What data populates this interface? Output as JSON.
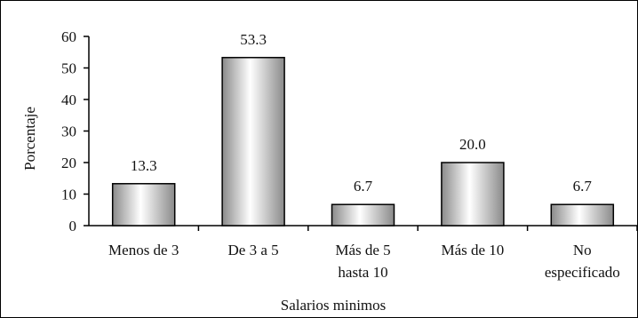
{
  "chart_data": {
    "type": "bar",
    "title": "",
    "xlabel": "Salarios minimos",
    "ylabel": "Porcentaje",
    "categories": [
      [
        "Menos de 3"
      ],
      [
        "De 3 a 5"
      ],
      [
        "Más de 5",
        "hasta 10"
      ],
      [
        "Más de 10"
      ],
      [
        "No",
        "especificado"
      ]
    ],
    "values": [
      13.3,
      53.3,
      6.7,
      20.0,
      6.7
    ],
    "value_labels": [
      "13.3",
      "53.3",
      "6.7",
      "20.0",
      "6.7"
    ],
    "ylim": [
      0,
      60
    ],
    "yticks": [
      0,
      10,
      20,
      30,
      40,
      50,
      60
    ],
    "grid": false,
    "legend": "none",
    "bar_gradient": [
      "#8a8a8a",
      "#ffffff",
      "#8a8a8a"
    ]
  }
}
